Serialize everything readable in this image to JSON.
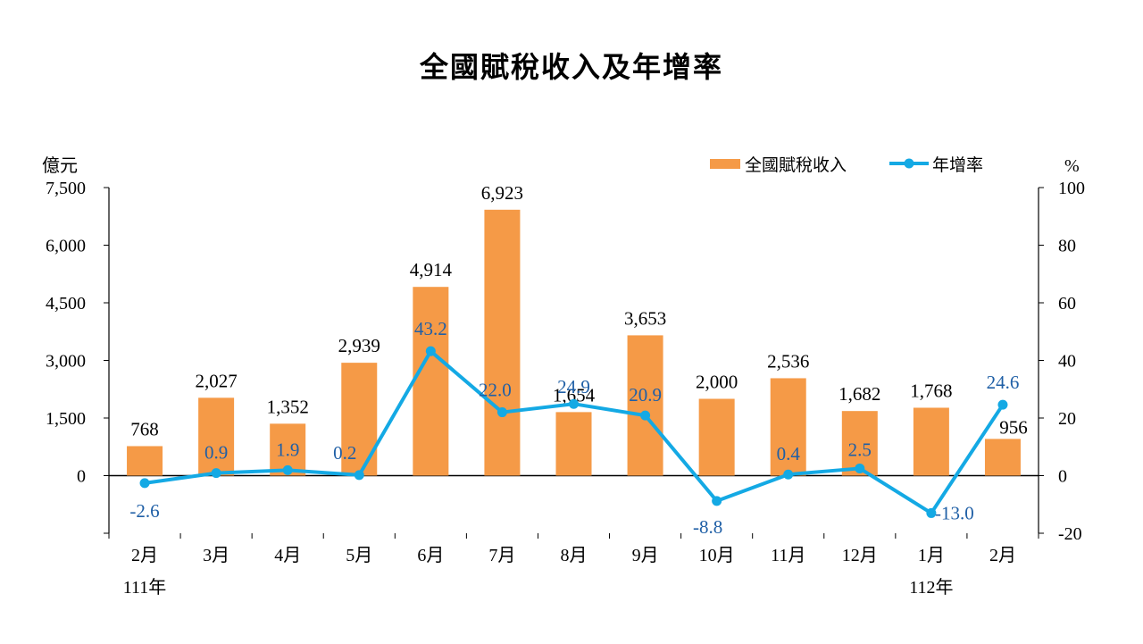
{
  "title": "全國賦稅收入及年增率",
  "colors": {
    "bar": "#f59a47",
    "line": "#14a9e4",
    "rate_label": "#1f5fa6"
  },
  "chart_data": {
    "type": "bar",
    "title": "全國賦稅收入及年增率",
    "categories": [
      "2月",
      "3月",
      "4月",
      "5月",
      "6月",
      "7月",
      "8月",
      "9月",
      "10月",
      "11月",
      "12月",
      "1月",
      "2月"
    ],
    "year_labels": [
      {
        "category_index": 0,
        "text": "111年"
      },
      {
        "category_index": 11,
        "text": "112年"
      }
    ],
    "series": [
      {
        "name": "全國賦稅收入",
        "type": "bar",
        "axis": "left",
        "values": [
          768,
          2027,
          1352,
          2939,
          4914,
          6923,
          1654,
          3653,
          2000,
          2536,
          1682,
          1768,
          956
        ],
        "labels": [
          "768",
          "2,027",
          "1,352",
          "2,939",
          "4,914",
          "6,923",
          "1,654",
          "3,653",
          "2,000",
          "2,536",
          "1,682",
          "1,768",
          "956"
        ]
      },
      {
        "name": "年增率",
        "type": "line",
        "axis": "right",
        "values": [
          -2.6,
          0.9,
          1.9,
          0.2,
          43.2,
          22.0,
          24.9,
          20.9,
          -8.8,
          0.4,
          2.5,
          -13.0,
          24.6
        ],
        "labels": [
          "-2.6",
          "0.9",
          "1.9",
          "0.2",
          "43.2",
          "22.0",
          "24.9",
          "20.9",
          "-8.8",
          "0.4",
          "2.5",
          "-13.0",
          "24.6"
        ]
      }
    ],
    "y_left": {
      "unit": "億元",
      "min": -1500,
      "max": 7500,
      "ticks": [
        0,
        1500,
        3000,
        4500,
        6000,
        7500
      ],
      "tick_labels": [
        "0",
        "1,500",
        "3,000",
        "4,500",
        "6,000",
        "7,500"
      ]
    },
    "y_right": {
      "unit": "%",
      "min": -20,
      "max": 100,
      "ticks": [
        -20,
        0,
        20,
        40,
        60,
        80,
        100
      ],
      "tick_labels": [
        "-20",
        "0",
        "20",
        "40",
        "60",
        "80",
        "100"
      ]
    },
    "legend": {
      "position": "top-right",
      "items": [
        "全國賦稅收入",
        "年增率"
      ]
    },
    "grid": false
  }
}
